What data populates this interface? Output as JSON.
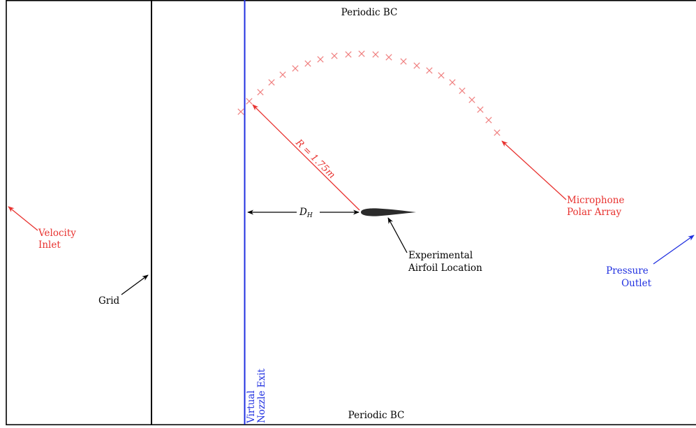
{
  "labels": {
    "periodic_top": "Periodic BC",
    "periodic_bottom": "Periodic BC",
    "velocity_inlet": [
      "Velocity",
      "Inlet"
    ],
    "grid": "Grid",
    "virtual_nozzle": [
      "Virtual",
      "Nozzle Exit"
    ],
    "radius": "R = 1.75m",
    "dh_main": "D",
    "dh_sub": "H",
    "airfoil": [
      "Experimental",
      "Airfoil Location"
    ],
    "mic_array": [
      "Microphone",
      "Polar Array"
    ],
    "pressure_outlet": [
      "Pressure",
      "Outlet"
    ]
  },
  "colors": {
    "red": "#e8322f",
    "blue": "#1f2fe0",
    "black": "#000000",
    "mic": "#f08080",
    "airfoil": "#2b2b2b"
  }
}
